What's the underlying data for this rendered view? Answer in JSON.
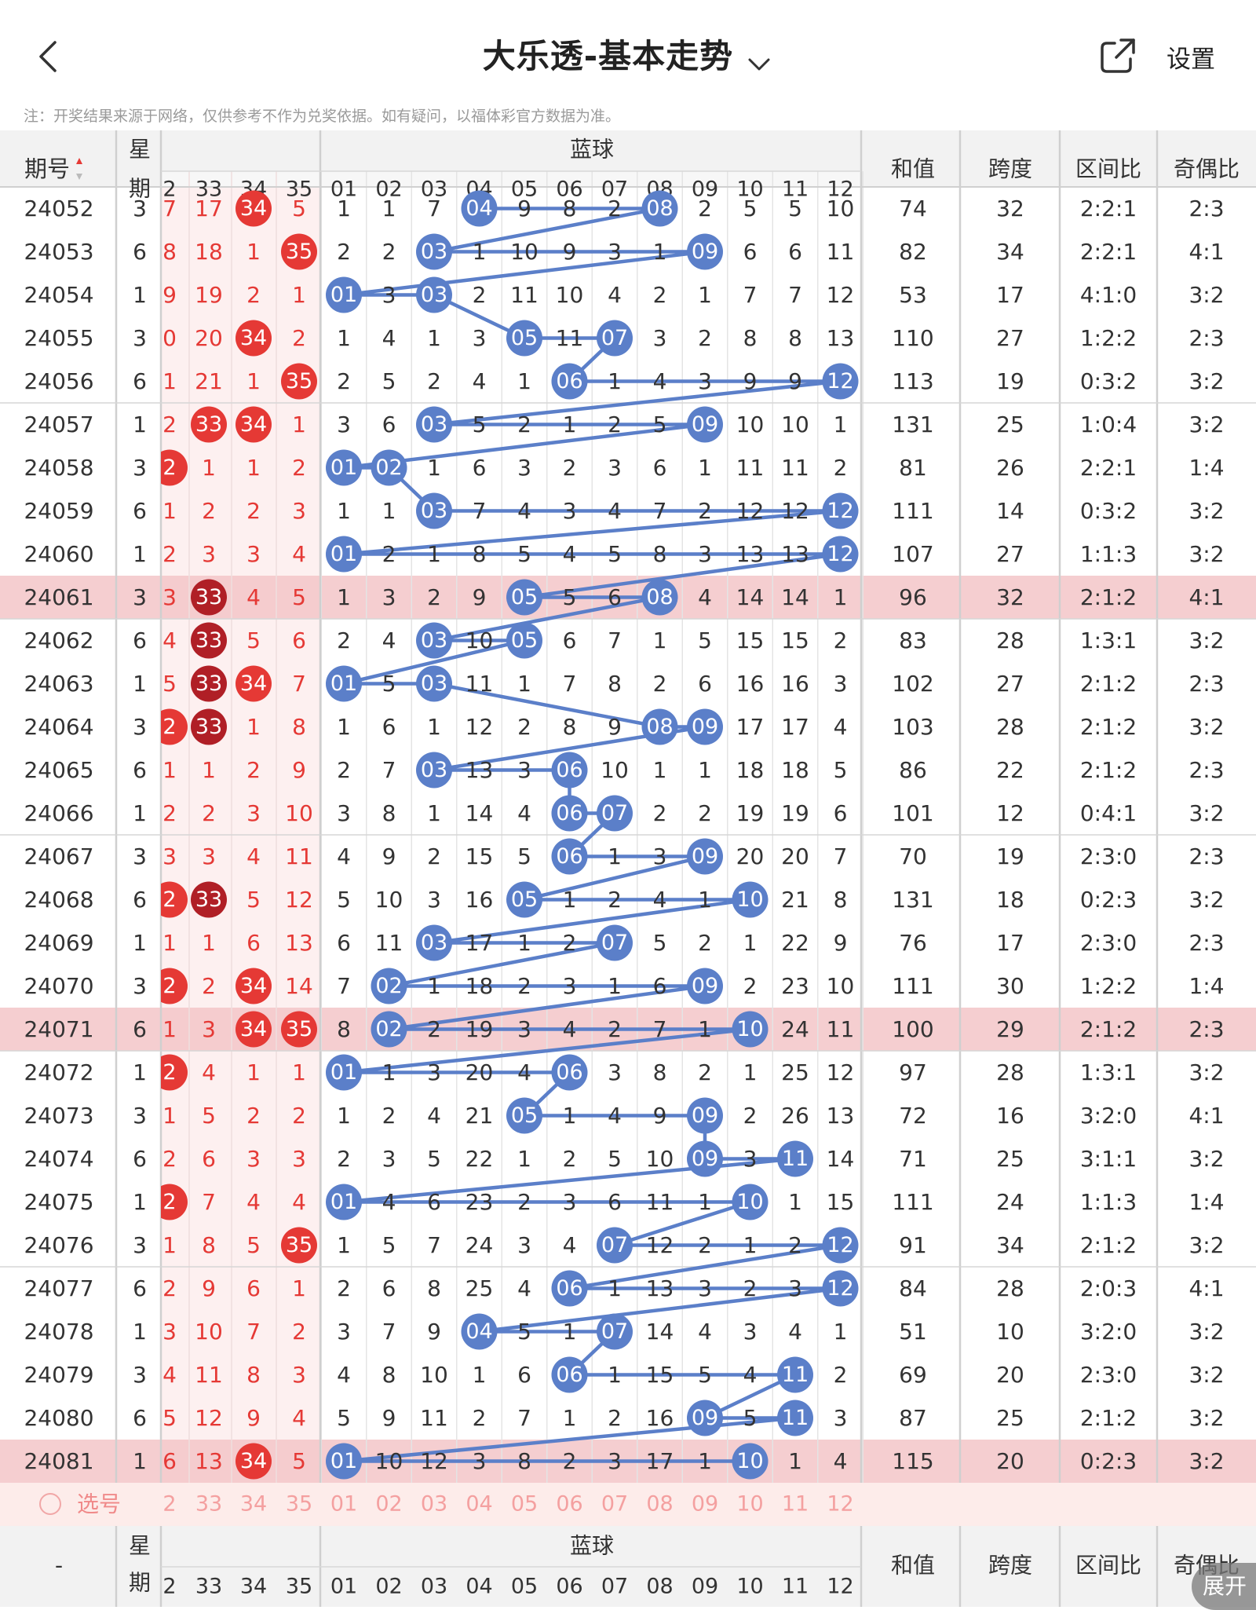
{
  "header": {
    "title": "大乐透-基本走势",
    "settings_label": "设置",
    "note": "注：开奖结果来源于网络，仅供参考不作为兑奖依据。如有疑问，以福体彩官方数据为准。"
  },
  "table": {
    "col_period": "期号",
    "col_weekday": [
      "星",
      "期"
    ],
    "blue_group": "蓝球",
    "col_sum": "和值",
    "col_span": "跨度",
    "col_zone": "区间比",
    "col_parity": "奇偶比",
    "front_nums": [
      "2",
      "33",
      "34",
      "35"
    ],
    "blue_nums": [
      "01",
      "02",
      "03",
      "04",
      "05",
      "06",
      "07",
      "08",
      "09",
      "10",
      "11",
      "12"
    ],
    "rows": [
      {
        "p": "24052",
        "w": "3",
        "f": [
          "7",
          "17",
          "34",
          "5"
        ],
        "fh": [
          false,
          false,
          true,
          false
        ],
        "b": [
          "1",
          "1",
          "7",
          "04",
          "9",
          "8",
          "2",
          "08",
          "2",
          "5",
          "5",
          "10"
        ],
        "bh": [
          4,
          8
        ],
        "sum": "74",
        "span": "32",
        "zone": "2:2:1",
        "par": "2:3",
        "x": false
      },
      {
        "p": "24053",
        "w": "6",
        "f": [
          "8",
          "18",
          "1",
          "35"
        ],
        "fh": [
          false,
          false,
          false,
          true
        ],
        "b": [
          "2",
          "2",
          "03",
          "1",
          "10",
          "9",
          "3",
          "1",
          "09",
          "6",
          "6",
          "11"
        ],
        "bh": [
          3,
          9
        ],
        "sum": "82",
        "span": "34",
        "zone": "2:2:1",
        "par": "4:1",
        "x": false
      },
      {
        "p": "24054",
        "w": "1",
        "f": [
          "9",
          "19",
          "2",
          "1"
        ],
        "fh": [
          false,
          false,
          false,
          false
        ],
        "b": [
          "01",
          "3",
          "03",
          "2",
          "11",
          "10",
          "4",
          "2",
          "1",
          "7",
          "7",
          "12"
        ],
        "bh": [
          1,
          3
        ],
        "sum": "53",
        "span": "17",
        "zone": "4:1:0",
        "par": "3:2",
        "x": false
      },
      {
        "p": "24055",
        "w": "3",
        "f": [
          "0",
          "20",
          "34",
          "2"
        ],
        "fh": [
          false,
          false,
          true,
          false
        ],
        "b": [
          "1",
          "4",
          "1",
          "3",
          "05",
          "11",
          "07",
          "3",
          "2",
          "8",
          "8",
          "13"
        ],
        "bh": [
          5,
          7
        ],
        "sum": "110",
        "span": "27",
        "zone": "1:2:2",
        "par": "2:3",
        "x": false
      },
      {
        "p": "24056",
        "w": "6",
        "f": [
          "1",
          "21",
          "1",
          "35"
        ],
        "fh": [
          false,
          false,
          false,
          true
        ],
        "b": [
          "2",
          "5",
          "2",
          "4",
          "1",
          "06",
          "1",
          "4",
          "3",
          "9",
          "9",
          "12"
        ],
        "bh": [
          6,
          12
        ],
        "sum": "113",
        "span": "19",
        "zone": "0:3:2",
        "par": "3:2",
        "x": false
      },
      {
        "p": "24057",
        "w": "1",
        "f": [
          "2",
          "33",
          "34",
          "1"
        ],
        "fh": [
          false,
          true,
          true,
          false
        ],
        "b": [
          "3",
          "6",
          "03",
          "5",
          "2",
          "1",
          "2",
          "5",
          "09",
          "10",
          "10",
          "1"
        ],
        "bh": [
          3,
          9
        ],
        "sum": "131",
        "span": "25",
        "zone": "1:0:4",
        "par": "3:2",
        "x": false
      },
      {
        "p": "24058",
        "w": "3",
        "f": [
          "2",
          "1",
          "1",
          "2"
        ],
        "fh": [
          true,
          false,
          false,
          false
        ],
        "b": [
          "01",
          "02",
          "1",
          "6",
          "3",
          "2",
          "3",
          "6",
          "1",
          "11",
          "11",
          "2"
        ],
        "bh": [
          1,
          2
        ],
        "sum": "81",
        "span": "26",
        "zone": "2:2:1",
        "par": "1:4",
        "x": false
      },
      {
        "p": "24059",
        "w": "6",
        "f": [
          "1",
          "2",
          "2",
          "3"
        ],
        "fh": [
          false,
          false,
          false,
          false
        ],
        "b": [
          "1",
          "1",
          "03",
          "7",
          "4",
          "3",
          "4",
          "7",
          "2",
          "12",
          "12",
          "12"
        ],
        "bh": [
          3,
          12
        ],
        "sum": "111",
        "span": "14",
        "zone": "0:3:2",
        "par": "3:2",
        "x": false
      },
      {
        "p": "24060",
        "w": "1",
        "f": [
          "2",
          "3",
          "3",
          "4"
        ],
        "fh": [
          false,
          false,
          false,
          false
        ],
        "b": [
          "01",
          "2",
          "1",
          "8",
          "5",
          "4",
          "5",
          "8",
          "3",
          "13",
          "13",
          "12"
        ],
        "bh": [
          1,
          12
        ],
        "sum": "107",
        "span": "27",
        "zone": "1:1:3",
        "par": "3:2",
        "x": false
      },
      {
        "p": "24061",
        "w": "3",
        "f": [
          "3",
          "33",
          "4",
          "5"
        ],
        "fh": [
          false,
          true,
          false,
          false
        ],
        "b": [
          "1",
          "3",
          "2",
          "9",
          "05",
          "5",
          "6",
          "08",
          "4",
          "14",
          "14",
          "1"
        ],
        "bh": [
          5,
          8
        ],
        "sum": "96",
        "span": "32",
        "zone": "2:1:2",
        "par": "4:1",
        "x": true
      },
      {
        "p": "24062",
        "w": "6",
        "f": [
          "4",
          "33",
          "5",
          "6"
        ],
        "fh": [
          false,
          true,
          false,
          false
        ],
        "b": [
          "2",
          "4",
          "03",
          "10",
          "05",
          "6",
          "7",
          "1",
          "5",
          "15",
          "15",
          "2"
        ],
        "bh": [
          3,
          5
        ],
        "sum": "83",
        "span": "28",
        "zone": "1:3:1",
        "par": "3:2",
        "x": false
      },
      {
        "p": "24063",
        "w": "1",
        "f": [
          "5",
          "33",
          "34",
          "7"
        ],
        "fh": [
          false,
          true,
          true,
          false
        ],
        "b": [
          "01",
          "5",
          "03",
          "11",
          "1",
          "7",
          "8",
          "2",
          "6",
          "16",
          "16",
          "3"
        ],
        "bh": [
          1,
          3
        ],
        "sum": "102",
        "span": "27",
        "zone": "2:1:2",
        "par": "2:3",
        "x": false
      },
      {
        "p": "24064",
        "w": "3",
        "f": [
          "2",
          "33",
          "1",
          "8"
        ],
        "fh": [
          true,
          true,
          false,
          false
        ],
        "b": [
          "1",
          "6",
          "1",
          "12",
          "2",
          "8",
          "9",
          "08",
          "09",
          "17",
          "17",
          "4"
        ],
        "bh": [
          8,
          9
        ],
        "sum": "103",
        "span": "28",
        "zone": "2:1:2",
        "par": "3:2",
        "x": false
      },
      {
        "p": "24065",
        "w": "6",
        "f": [
          "1",
          "1",
          "2",
          "9"
        ],
        "fh": [
          false,
          false,
          false,
          false
        ],
        "b": [
          "2",
          "7",
          "03",
          "13",
          "3",
          "06",
          "10",
          "1",
          "1",
          "18",
          "18",
          "5"
        ],
        "bh": [
          3,
          6
        ],
        "sum": "86",
        "span": "22",
        "zone": "2:1:2",
        "par": "2:3",
        "x": false
      },
      {
        "p": "24066",
        "w": "1",
        "f": [
          "2",
          "2",
          "3",
          "10"
        ],
        "fh": [
          false,
          false,
          false,
          false
        ],
        "b": [
          "3",
          "8",
          "1",
          "14",
          "4",
          "06",
          "07",
          "2",
          "2",
          "19",
          "19",
          "6"
        ],
        "bh": [
          6,
          7
        ],
        "sum": "101",
        "span": "12",
        "zone": "0:4:1",
        "par": "3:2",
        "x": false
      },
      {
        "p": "24067",
        "w": "3",
        "f": [
          "3",
          "3",
          "4",
          "11"
        ],
        "fh": [
          false,
          false,
          false,
          false
        ],
        "b": [
          "4",
          "9",
          "2",
          "15",
          "5",
          "06",
          "1",
          "3",
          "09",
          "20",
          "20",
          "7"
        ],
        "bh": [
          6,
          9
        ],
        "sum": "70",
        "span": "19",
        "zone": "2:3:0",
        "par": "2:3",
        "x": false
      },
      {
        "p": "24068",
        "w": "6",
        "f": [
          "2",
          "33",
          "5",
          "12"
        ],
        "fh": [
          true,
          true,
          false,
          false
        ],
        "b": [
          "5",
          "10",
          "3",
          "16",
          "05",
          "1",
          "2",
          "4",
          "1",
          "10",
          "21",
          "8"
        ],
        "bh": [
          5,
          10
        ],
        "sum": "131",
        "span": "18",
        "zone": "0:2:3",
        "par": "3:2",
        "x": false
      },
      {
        "p": "24069",
        "w": "1",
        "f": [
          "1",
          "1",
          "6",
          "13"
        ],
        "fh": [
          false,
          false,
          false,
          false
        ],
        "b": [
          "6",
          "11",
          "03",
          "17",
          "1",
          "2",
          "07",
          "5",
          "2",
          "1",
          "22",
          "9"
        ],
        "bh": [
          3,
          7
        ],
        "sum": "76",
        "span": "17",
        "zone": "2:3:0",
        "par": "2:3",
        "x": false
      },
      {
        "p": "24070",
        "w": "3",
        "f": [
          "2",
          "2",
          "34",
          "14"
        ],
        "fh": [
          true,
          false,
          true,
          false
        ],
        "b": [
          "7",
          "02",
          "1",
          "18",
          "2",
          "3",
          "1",
          "6",
          "09",
          "2",
          "23",
          "10"
        ],
        "bh": [
          2,
          9
        ],
        "sum": "111",
        "span": "30",
        "zone": "1:2:2",
        "par": "1:4",
        "x": false
      },
      {
        "p": "24071",
        "w": "6",
        "f": [
          "1",
          "3",
          "34",
          "35"
        ],
        "fh": [
          false,
          false,
          true,
          true
        ],
        "b": [
          "8",
          "02",
          "2",
          "19",
          "3",
          "4",
          "2",
          "7",
          "1",
          "10",
          "24",
          "11"
        ],
        "bh": [
          2,
          10
        ],
        "sum": "100",
        "span": "29",
        "zone": "2:1:2",
        "par": "2:3",
        "x": true
      },
      {
        "p": "24072",
        "w": "1",
        "f": [
          "2",
          "4",
          "1",
          "1"
        ],
        "fh": [
          true,
          false,
          false,
          false
        ],
        "b": [
          "01",
          "1",
          "3",
          "20",
          "4",
          "06",
          "3",
          "8",
          "2",
          "1",
          "25",
          "12"
        ],
        "bh": [
          1,
          6
        ],
        "sum": "97",
        "span": "28",
        "zone": "1:3:1",
        "par": "3:2",
        "x": false
      },
      {
        "p": "24073",
        "w": "3",
        "f": [
          "1",
          "5",
          "2",
          "2"
        ],
        "fh": [
          false,
          false,
          false,
          false
        ],
        "b": [
          "1",
          "2",
          "4",
          "21",
          "05",
          "1",
          "4",
          "9",
          "09",
          "2",
          "26",
          "13"
        ],
        "bh": [
          5,
          9
        ],
        "sum": "72",
        "span": "16",
        "zone": "3:2:0",
        "par": "4:1",
        "x": false
      },
      {
        "p": "24074",
        "w": "6",
        "f": [
          "2",
          "6",
          "3",
          "3"
        ],
        "fh": [
          false,
          false,
          false,
          false
        ],
        "b": [
          "2",
          "3",
          "5",
          "22",
          "1",
          "2",
          "5",
          "10",
          "09",
          "3",
          "11",
          "14"
        ],
        "bh": [
          9,
          11
        ],
        "sum": "71",
        "span": "25",
        "zone": "3:1:1",
        "par": "3:2",
        "x": false
      },
      {
        "p": "24075",
        "w": "1",
        "f": [
          "2",
          "7",
          "4",
          "4"
        ],
        "fh": [
          true,
          false,
          false,
          false
        ],
        "b": [
          "01",
          "4",
          "6",
          "23",
          "2",
          "3",
          "6",
          "11",
          "1",
          "10",
          "1",
          "15"
        ],
        "bh": [
          1,
          10
        ],
        "sum": "111",
        "span": "24",
        "zone": "1:1:3",
        "par": "1:4",
        "x": false
      },
      {
        "p": "24076",
        "w": "3",
        "f": [
          "1",
          "8",
          "5",
          "35"
        ],
        "fh": [
          false,
          false,
          false,
          true
        ],
        "b": [
          "1",
          "5",
          "7",
          "24",
          "3",
          "4",
          "07",
          "12",
          "2",
          "1",
          "2",
          "12"
        ],
        "bh": [
          7,
          12
        ],
        "sum": "91",
        "span": "34",
        "zone": "2:1:2",
        "par": "3:2",
        "x": false
      },
      {
        "p": "24077",
        "w": "6",
        "f": [
          "2",
          "9",
          "6",
          "1"
        ],
        "fh": [
          false,
          false,
          false,
          false
        ],
        "b": [
          "2",
          "6",
          "8",
          "25",
          "4",
          "06",
          "1",
          "13",
          "3",
          "2",
          "3",
          "12"
        ],
        "bh": [
          6,
          12
        ],
        "sum": "84",
        "span": "28",
        "zone": "2:0:3",
        "par": "4:1",
        "x": false
      },
      {
        "p": "24078",
        "w": "1",
        "f": [
          "3",
          "10",
          "7",
          "2"
        ],
        "fh": [
          false,
          false,
          false,
          false
        ],
        "b": [
          "3",
          "7",
          "9",
          "04",
          "5",
          "1",
          "07",
          "14",
          "4",
          "3",
          "4",
          "1"
        ],
        "bh": [
          4,
          7
        ],
        "sum": "51",
        "span": "10",
        "zone": "3:2:0",
        "par": "3:2",
        "x": false
      },
      {
        "p": "24079",
        "w": "3",
        "f": [
          "4",
          "11",
          "8",
          "3"
        ],
        "fh": [
          false,
          false,
          false,
          false
        ],
        "b": [
          "4",
          "8",
          "10",
          "1",
          "6",
          "06",
          "1",
          "15",
          "5",
          "4",
          "11",
          "2"
        ],
        "bh": [
          6,
          11
        ],
        "sum": "69",
        "span": "20",
        "zone": "2:3:0",
        "par": "3:2",
        "x": false
      },
      {
        "p": "24080",
        "w": "6",
        "f": [
          "5",
          "12",
          "9",
          "4"
        ],
        "fh": [
          false,
          false,
          false,
          false
        ],
        "b": [
          "5",
          "9",
          "11",
          "2",
          "7",
          "1",
          "2",
          "16",
          "09",
          "5",
          "11",
          "3"
        ],
        "bh": [
          9,
          11
        ],
        "sum": "87",
        "span": "25",
        "zone": "2:1:2",
        "par": "3:2",
        "x": false
      },
      {
        "p": "24081",
        "w": "1",
        "f": [
          "6",
          "13",
          "34",
          "5"
        ],
        "fh": [
          false,
          false,
          true,
          false
        ],
        "b": [
          "01",
          "10",
          "12",
          "3",
          "8",
          "2",
          "3",
          "17",
          "1",
          "10",
          "1",
          "4"
        ],
        "bh": [
          1,
          10
        ],
        "sum": "115",
        "span": "20",
        "zone": "0:2:3",
        "par": "3:2",
        "x": true
      }
    ]
  },
  "select_row": {
    "label": "选号"
  },
  "footer_header": {
    "period": "-"
  },
  "expand_label": "展开",
  "colors": {
    "blue_ball": "#5b7fc9",
    "red_ball": "#e53935",
    "dark_red_ball": "#b01f26",
    "highlight_row": "#f3c5c8",
    "line": "#5b7fc9",
    "red_text": "#e53935",
    "front_bg": "#fdf0f0",
    "select_bg": "#fdecea"
  }
}
